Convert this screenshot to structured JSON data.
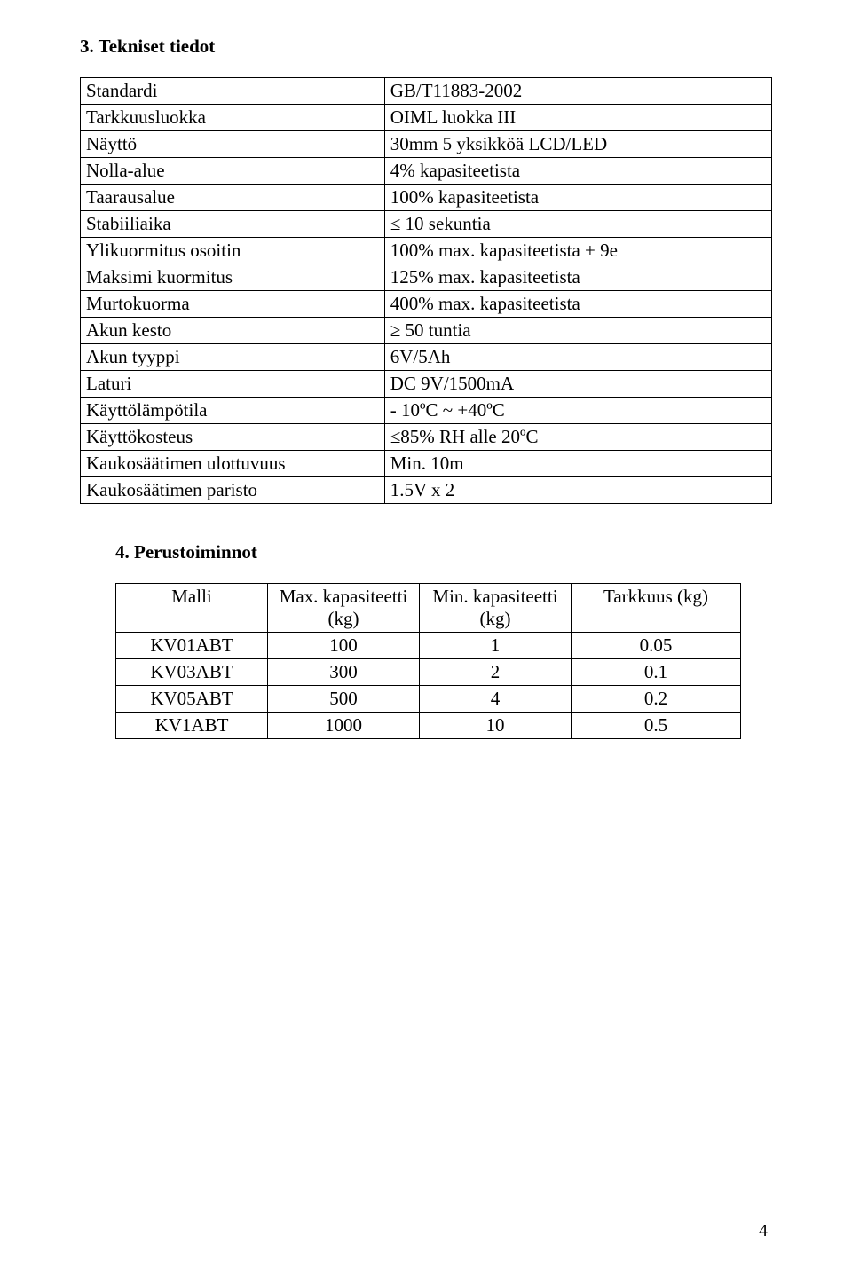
{
  "sections": {
    "tech": {
      "title": "3. Tekniset tiedot"
    },
    "basic": {
      "title": "4. Perustoiminnot"
    }
  },
  "spec_rows": [
    {
      "key": "Standardi",
      "val": "GB/T11883-2002"
    },
    {
      "key": "Tarkkuusluokka",
      "val": "OIML luokka III"
    },
    {
      "key": "Näyttö",
      "val": "30mm 5 yksikköä LCD/LED"
    },
    {
      "key": "Nolla-alue",
      "val": "4% kapasiteetista"
    },
    {
      "key": "Taarausalue",
      "val": "100% kapasiteetista"
    },
    {
      "key": "Stabiiliaika",
      "val": "≤ 10 sekuntia"
    },
    {
      "key": "Ylikuormitus osoitin",
      "val": "100% max. kapasiteetista + 9e"
    },
    {
      "key": "Maksimi kuormitus",
      "val": "125% max. kapasiteetista"
    },
    {
      "key": "Murtokuorma",
      "val": "400% max. kapasiteetista"
    },
    {
      "key": "Akun kesto",
      "val": "≥ 50 tuntia"
    },
    {
      "key": "Akun tyyppi",
      "val": "6V/5Ah"
    },
    {
      "key": "Laturi",
      "val": "DC 9V/1500mA"
    },
    {
      "key": "Käyttölämpötila",
      "val": "- 10ºC ~ +40ºC"
    },
    {
      "key": "Käyttökosteus",
      "val": "≤85% RH alle 20ºC"
    },
    {
      "key": "Kaukosäätimen ulottuvuus",
      "val": "Min. 10m"
    },
    {
      "key": "Kaukosäätimen paristo",
      "val": "1.5V x 2"
    }
  ],
  "models_header": {
    "model": "Malli",
    "max": "Max. kapasiteetti (kg)",
    "min": "Min. kapasiteetti (kg)",
    "acc": "Tarkkuus (kg)"
  },
  "models_rows": [
    {
      "model": "KV01ABT",
      "max": "100",
      "min": "1",
      "acc": "0.05"
    },
    {
      "model": "KV03ABT",
      "max": "300",
      "min": "2",
      "acc": "0.1"
    },
    {
      "model": "KV05ABT",
      "max": "500",
      "min": "4",
      "acc": "0.2"
    },
    {
      "model": "KV1ABT",
      "max": "1000",
      "min": "10",
      "acc": "0.5"
    }
  ],
  "page_number": "4"
}
